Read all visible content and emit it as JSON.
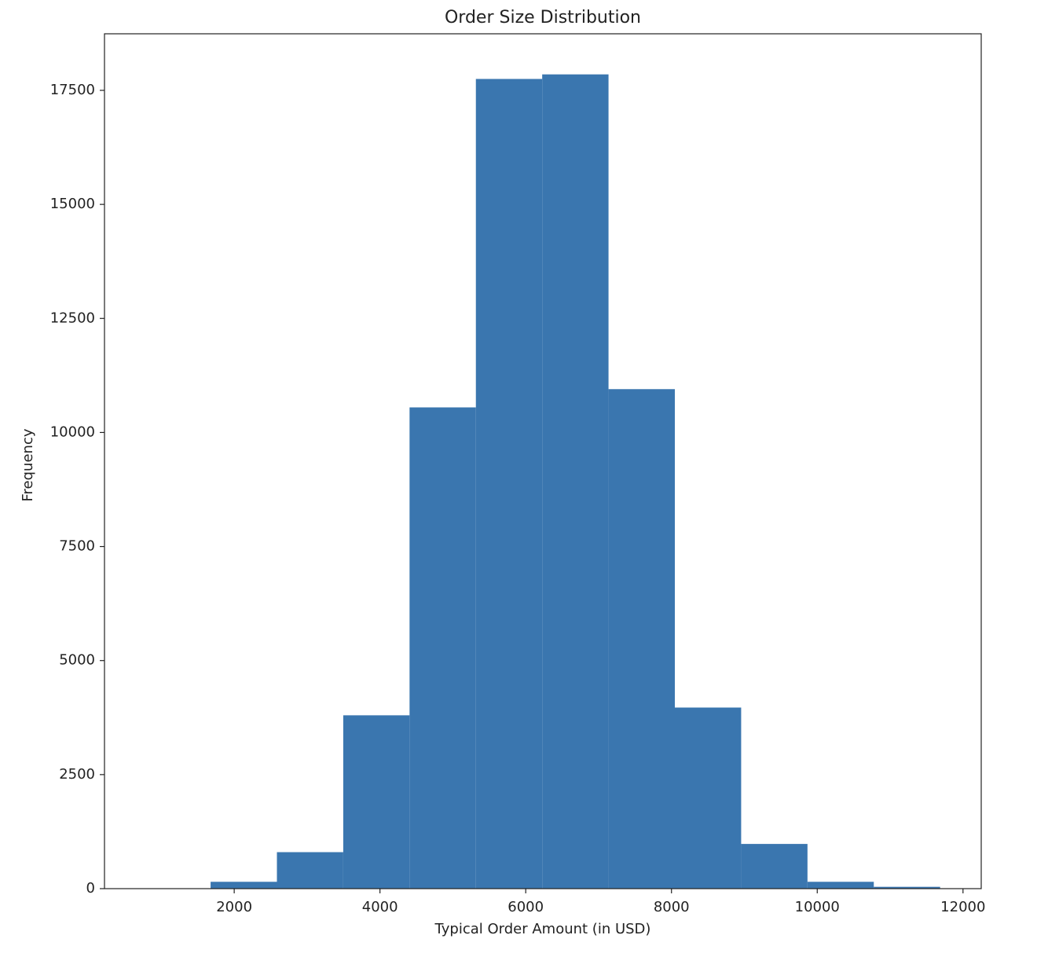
{
  "chart_data": {
    "type": "histogram",
    "title": "Order Size Distribution",
    "x_label": "Typical Order Amount (in USD)",
    "y_label": "Frequency",
    "bins": [
      766,
      1676,
      2586,
      3496,
      4406,
      5316,
      6226,
      7136,
      8046,
      8956,
      9866,
      10776,
      11686
    ],
    "values": [
      3,
      150,
      800,
      3800,
      10550,
      17750,
      17850,
      10950,
      3970,
      980,
      150,
      40
    ],
    "color": "#3a76af",
    "xlim": [
      220,
      12250
    ],
    "xticks": [
      2000,
      4000,
      6000,
      8000,
      10000,
      12000
    ],
    "ylim": [
      0,
      18740
    ],
    "yticks": [
      0,
      2500,
      5000,
      7500,
      10000,
      12500,
      15000,
      17500
    ]
  }
}
